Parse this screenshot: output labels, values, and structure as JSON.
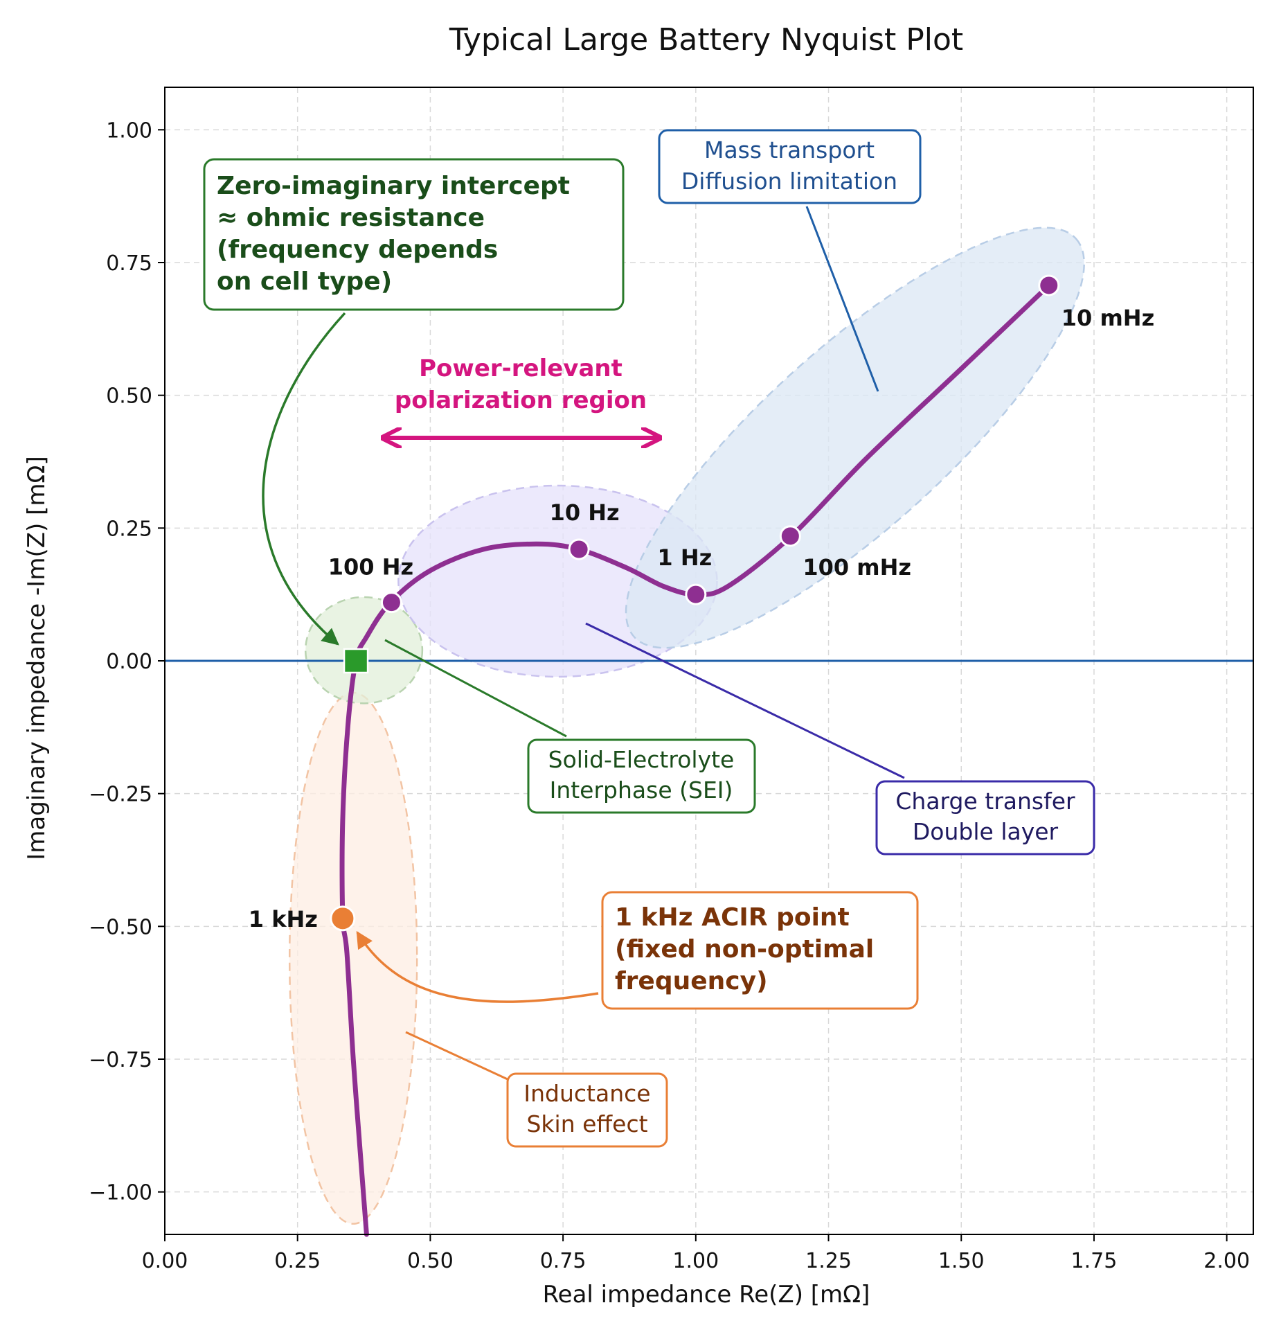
{
  "chart_data": {
    "type": "line",
    "title": "Typical Large Battery Nyquist Plot",
    "xlabel": "Real impedance Re(Z) [mΩ]",
    "ylabel": "Imaginary impedance -Im(Z) [mΩ]",
    "xlim": [
      0.0,
      2.05
    ],
    "ylim": [
      -1.08,
      1.08
    ],
    "grid": true,
    "x_ticks": [
      0.0,
      0.25,
      0.5,
      0.75,
      1.0,
      1.25,
      1.5,
      1.75,
      2.0
    ],
    "x_tick_labels": [
      "0.00",
      "0.25",
      "0.50",
      "0.75",
      "1.00",
      "1.25",
      "1.50",
      "1.75",
      "2.00"
    ],
    "y_ticks": [
      1.0,
      0.75,
      0.5,
      0.25,
      0.0,
      -0.25,
      -0.5,
      -0.75,
      -1.0
    ],
    "y_tick_labels": [
      "1.00",
      "0.75",
      "0.50",
      "0.25",
      "0.00",
      "−0.25",
      "−0.50",
      "−0.75",
      "−1.00"
    ],
    "colors": {
      "curve": "#8e2f91",
      "zero_line": "#1f5fa8",
      "sei": "#2a7a2a",
      "charge_transfer": "#3a2ba8",
      "diffusion": "#1f5fa8",
      "inductance": "#e97f35",
      "power_region": "#d4157f"
    },
    "curve": [
      [
        0.38,
        -1.08
      ],
      [
        0.37,
        -0.95
      ],
      [
        0.355,
        -0.75
      ],
      [
        0.343,
        -0.55
      ],
      [
        0.335,
        -0.48
      ],
      [
        0.335,
        -0.3
      ],
      [
        0.345,
        -0.12
      ],
      [
        0.36,
        0.0
      ],
      [
        0.38,
        0.045
      ],
      [
        0.425,
        0.11
      ],
      [
        0.5,
        0.17
      ],
      [
        0.6,
        0.21
      ],
      [
        0.7,
        0.22
      ],
      [
        0.78,
        0.21
      ],
      [
        0.87,
        0.175
      ],
      [
        0.94,
        0.14
      ],
      [
        1.0,
        0.125
      ],
      [
        1.06,
        0.14
      ],
      [
        1.18,
        0.235
      ],
      [
        1.32,
        0.38
      ],
      [
        1.5,
        0.55
      ],
      [
        1.665,
        0.707
      ]
    ],
    "frequency_points": [
      {
        "label": "100 Hz",
        "x": 0.427,
        "y": 0.11
      },
      {
        "label": "10 Hz",
        "x": 0.78,
        "y": 0.21
      },
      {
        "label": "1 Hz",
        "x": 1.0,
        "y": 0.125
      },
      {
        "label": "100 mHz",
        "x": 1.178,
        "y": 0.235
      },
      {
        "label": "10 mHz",
        "x": 1.665,
        "y": 0.707
      },
      {
        "label": "1 kHz",
        "x": 0.335,
        "y": -0.485
      }
    ],
    "zero_intercept": {
      "x": 0.36,
      "y": 0.0
    },
    "regions": [
      {
        "name": "Inductance",
        "cx": 0.355,
        "cy": -0.56,
        "rx": 0.12,
        "ry": 0.5,
        "angle": 0
      },
      {
        "name": "SEI",
        "cx": 0.375,
        "cy": 0.02,
        "rx": 0.11,
        "ry": 0.1,
        "angle": 0
      },
      {
        "name": "Charge transfer",
        "cx": 0.74,
        "cy": 0.15,
        "rx": 0.3,
        "ry": 0.18,
        "angle": 0
      },
      {
        "name": "Diffusion",
        "cx": 1.3,
        "cy": 0.42,
        "rx": 0.56,
        "ry": 0.17,
        "angle": 42
      }
    ],
    "annotations": {
      "intercept": [
        "Zero-imaginary intercept",
        "≈ ohmic resistance",
        "(frequency depends",
        "on cell type)"
      ],
      "mass_transport": [
        "Mass transport",
        "Diffusion limitation"
      ],
      "power_region": [
        "Power-relevant",
        "polarization region"
      ],
      "sei": [
        "Solid-Electrolyte",
        "Interphase (SEI)"
      ],
      "charge_transfer": [
        "Charge transfer",
        "Double layer"
      ],
      "acir": [
        "1 kHz ACIR point",
        "(fixed non-optimal",
        "frequency)"
      ],
      "inductance": [
        "Inductance",
        "Skin effect"
      ]
    }
  }
}
